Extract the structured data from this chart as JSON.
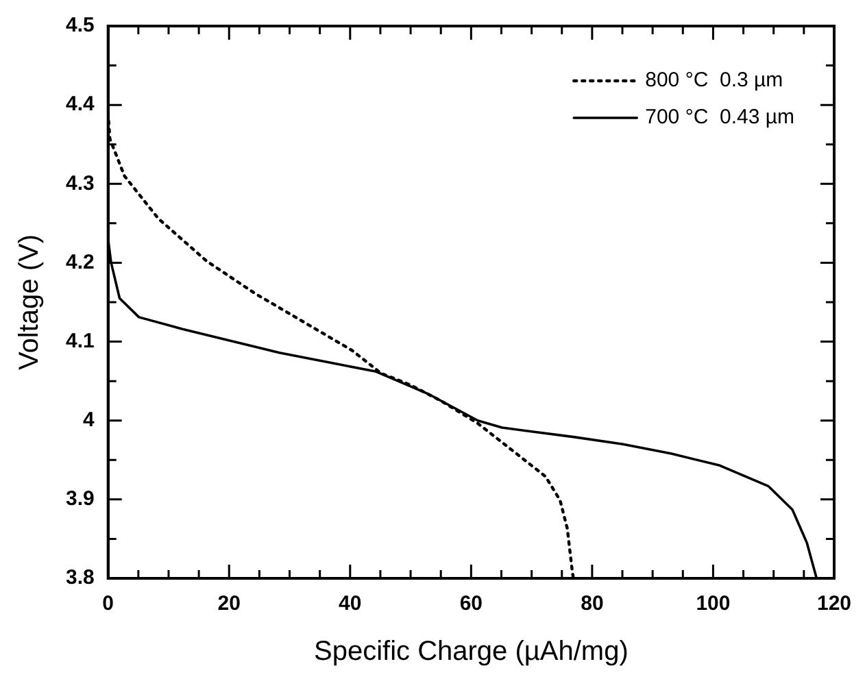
{
  "chart_data": {
    "type": "line",
    "xlabel": "Specific Charge (µAh/mg)",
    "ylabel": "Voltage (V)",
    "xlim": [
      0,
      120
    ],
    "ylim": [
      3.8,
      4.5
    ],
    "xticks": [
      0,
      {
        "value": 5,
        "label": null
      },
      {
        "value": 10,
        "label": null
      },
      {
        "value": 15,
        "label": null
      },
      20,
      {
        "value": 25,
        "label": null
      },
      {
        "value": 30,
        "label": null
      },
      {
        "value": 35,
        "label": null
      },
      40,
      {
        "value": 45,
        "label": null
      },
      {
        "value": 50,
        "label": null
      },
      {
        "value": 55,
        "label": null
      },
      60,
      {
        "value": 65,
        "label": null
      },
      {
        "value": 70,
        "label": null
      },
      {
        "value": 75,
        "label": null
      },
      80,
      {
        "value": 85,
        "label": null
      },
      {
        "value": 90,
        "label": null
      },
      {
        "value": 95,
        "label": null
      },
      100,
      {
        "value": 105,
        "label": null
      },
      {
        "value": 110,
        "label": null
      },
      {
        "value": 115,
        "label": null
      },
      120
    ],
    "yticks": [
      3.8,
      {
        "value": 3.85,
        "label": null
      },
      3.9,
      {
        "value": 3.95,
        "label": null
      },
      4,
      {
        "value": 4.05,
        "label": null
      },
      4.1,
      {
        "value": 4.15,
        "label": null
      },
      4.2,
      {
        "value": 4.25,
        "label": null
      },
      4.3,
      {
        "value": 4.35,
        "label": null
      },
      4.4,
      {
        "value": 4.45,
        "label": null
      },
      4.5
    ],
    "grid": false,
    "legend": "top right",
    "marker": "none",
    "series": [
      {
        "name": "800 °C  0.3 µm",
        "color": "#000000",
        "line_style": "dotted",
        "x": [
          0,
          0.3,
          2.7,
          8.3,
          16.3,
          24.3,
          32.3,
          40.3,
          45.1,
          50,
          55,
          61,
          67.5,
          72.3,
          74.7,
          75.9,
          76.7,
          76.9
        ],
        "values": [
          4.39,
          4.357,
          4.31,
          4.256,
          4.202,
          4.161,
          4.125,
          4.089,
          4.06,
          4.045,
          4.025,
          3.997,
          3.958,
          3.929,
          3.899,
          3.863,
          3.81,
          3.8
        ]
      },
      {
        "name": "700 °C  0.43 µm",
        "color": "#000000",
        "line_style": "solid",
        "x": [
          0,
          0.5,
          1.9,
          5.1,
          12.3,
          20.3,
          28.3,
          36.3,
          44.3,
          53.1,
          61.1,
          65.1,
          77.1,
          85.1,
          93.1,
          101.1,
          109.1,
          113.1,
          115.5,
          117.1
        ],
        "values": [
          4.23,
          4.2,
          4.155,
          4.131,
          4.116,
          4.101,
          4.086,
          4.074,
          4.062,
          4.033,
          4.0,
          3.991,
          3.979,
          3.97,
          3.958,
          3.943,
          3.917,
          3.887,
          3.845,
          3.8
        ]
      }
    ]
  }
}
